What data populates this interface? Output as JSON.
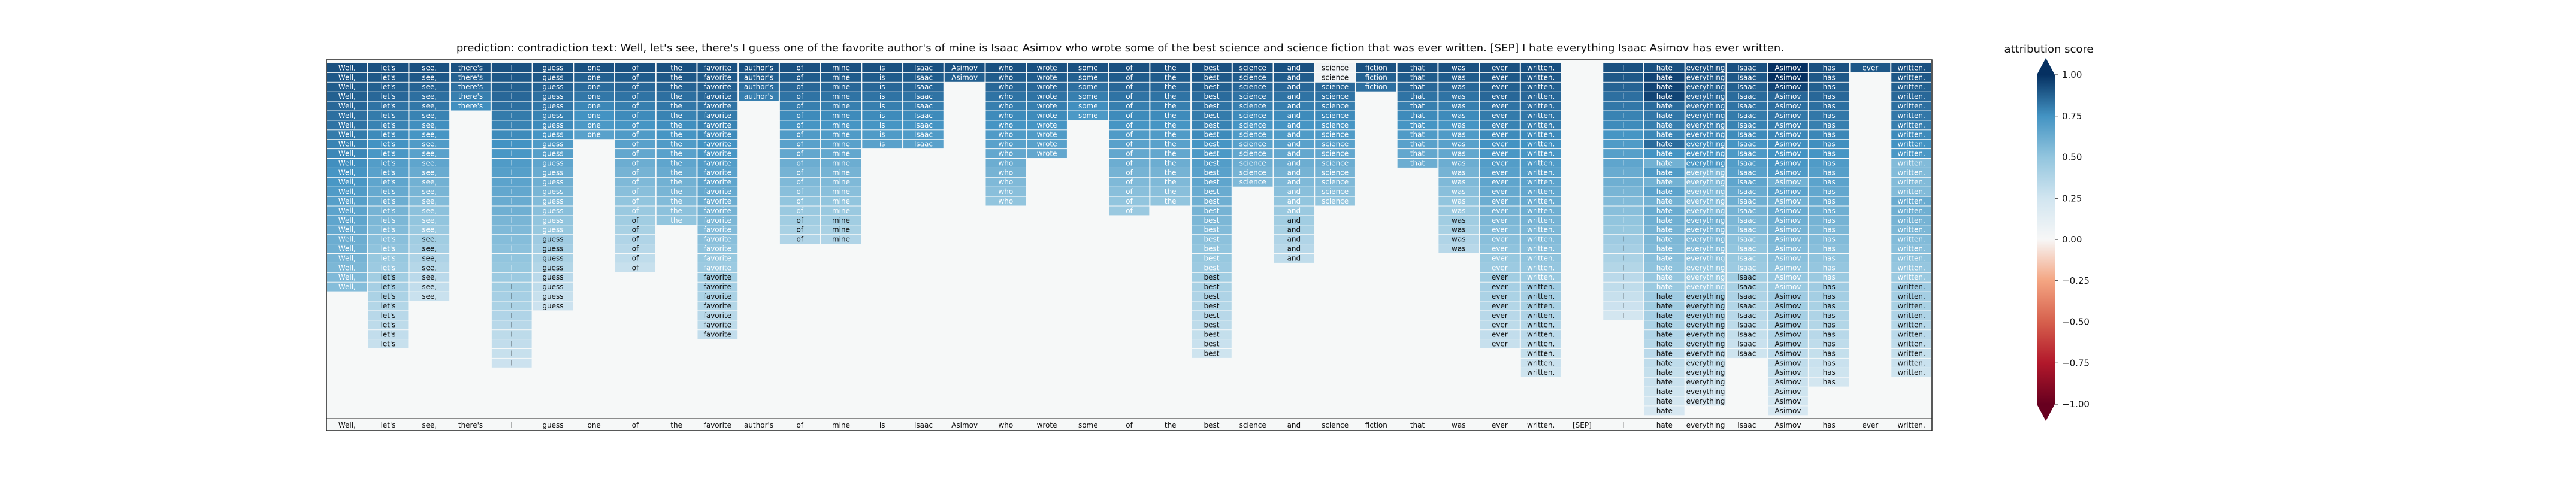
{
  "title": "prediction:  contradiction      text:  Well, let's see, there's I guess one of the favorite author's of mine is Isaac Asimov who wrote some of the best science and science fiction that was ever written. [SEP] I hate everything Isaac Asimov has ever written.",
  "colorbar": {
    "label": "attribution score",
    "ticks": [
      "1.00",
      "0.75",
      "0.50",
      "0.25",
      "0.00",
      "−0.25",
      "−0.50",
      "−0.75",
      "−1.00"
    ]
  },
  "chart_data": {
    "type": "heatmap",
    "title": "prediction:  contradiction      text:  Well, let's see, there's I guess one of the favorite author's of mine is Isaac Asimov who wrote some of the best science and science fiction that was ever written. [SEP] I hate everything Isaac Asimov has ever written.",
    "prediction": "contradiction",
    "colorbar_label": "attribution score",
    "colorbar_range": [
      -1.0,
      1.0
    ],
    "colormap": "RdBu",
    "xlabels": [
      "Well,",
      "let's",
      "see,",
      "there's",
      "I",
      "guess",
      "one",
      "of",
      "the",
      "favorite",
      "author's",
      "of",
      "mine",
      "is",
      "Isaac",
      "Asimov",
      "who",
      "wrote",
      "some",
      "of",
      "the",
      "best",
      "science",
      "and",
      "science",
      "fiction",
      "that",
      "was",
      "ever",
      "written.",
      "[SEP]",
      "I",
      "hate",
      "everything",
      "Isaac",
      "Asimov",
      "has",
      "ever",
      "written."
    ],
    "column_cell_counts": [
      24,
      30,
      25,
      5,
      32,
      26,
      8,
      22,
      17,
      29,
      4,
      19,
      19,
      9,
      9,
      2,
      15,
      10,
      6,
      16,
      15,
      31,
      13,
      21,
      15,
      3,
      11,
      20,
      30,
      33,
      0,
      27,
      37,
      36,
      31,
      37,
      34,
      1,
      33
    ],
    "cell_values": [
      [
        0.92,
        0.9,
        0.89,
        0.88,
        0.86,
        0.84,
        0.83,
        0.81,
        0.79,
        0.78,
        0.76,
        0.74,
        0.73,
        0.71,
        0.69,
        0.67,
        0.66,
        0.64,
        0.62,
        0.61,
        0.59,
        0.57,
        0.56,
        0.54
      ],
      [
        0.92,
        0.9,
        0.88,
        0.86,
        0.83,
        0.81,
        0.79,
        0.77,
        0.75,
        0.73,
        0.7,
        0.68,
        0.66,
        0.64,
        0.62,
        0.59,
        0.57,
        0.55,
        0.53,
        0.51,
        0.48,
        0.46,
        0.44,
        0.42,
        0.4,
        0.37,
        0.35,
        0.33,
        0.31,
        0.29
      ],
      [
        0.92,
        0.9,
        0.87,
        0.84,
        0.82,
        0.79,
        0.76,
        0.74,
        0.71,
        0.68,
        0.66,
        0.63,
        0.6,
        0.58,
        0.55,
        0.52,
        0.5,
        0.47,
        0.44,
        0.42,
        0.39,
        0.36,
        0.34,
        0.31,
        0.28
      ],
      [
        0.92,
        0.88,
        0.84,
        0.8,
        0.76
      ],
      [
        0.92,
        0.9,
        0.88,
        0.86,
        0.84,
        0.81,
        0.79,
        0.77,
        0.75,
        0.73,
        0.71,
        0.69,
        0.67,
        0.65,
        0.63,
        0.61,
        0.58,
        0.56,
        0.54,
        0.52,
        0.5,
        0.48,
        0.46,
        0.44,
        0.42,
        0.4,
        0.38,
        0.35,
        0.33,
        0.31,
        0.29,
        0.27
      ],
      [
        0.92,
        0.9,
        0.87,
        0.84,
        0.82,
        0.79,
        0.77,
        0.74,
        0.71,
        0.69,
        0.66,
        0.63,
        0.61,
        0.58,
        0.55,
        0.53,
        0.5,
        0.48,
        0.45,
        0.42,
        0.4,
        0.37,
        0.34,
        0.32,
        0.29,
        0.27
      ],
      [
        0.92,
        0.88,
        0.85,
        0.82,
        0.78,
        0.75,
        0.72,
        0.68
      ],
      [
        0.92,
        0.89,
        0.86,
        0.83,
        0.8,
        0.77,
        0.74,
        0.71,
        0.68,
        0.65,
        0.62,
        0.59,
        0.56,
        0.53,
        0.5,
        0.47,
        0.44,
        0.41,
        0.38,
        0.35,
        0.32,
        0.29
      ],
      [
        0.92,
        0.9,
        0.87,
        0.84,
        0.82,
        0.79,
        0.76,
        0.74,
        0.71,
        0.68,
        0.66,
        0.63,
        0.6,
        0.58,
        0.55,
        0.52,
        0.5
      ],
      [
        0.92,
        0.9,
        0.88,
        0.86,
        0.83,
        0.81,
        0.79,
        0.77,
        0.75,
        0.73,
        0.7,
        0.68,
        0.66,
        0.64,
        0.62,
        0.59,
        0.57,
        0.55,
        0.53,
        0.51,
        0.48,
        0.46,
        0.44,
        0.42,
        0.4,
        0.37,
        0.35,
        0.33,
        0.31
      ],
      [
        0.92,
        0.88,
        0.84,
        0.8
      ],
      [
        0.92,
        0.89,
        0.86,
        0.83,
        0.8,
        0.77,
        0.74,
        0.71,
        0.68,
        0.65,
        0.62,
        0.59,
        0.56,
        0.53,
        0.5,
        0.47,
        0.44,
        0.41,
        0.38
      ],
      [
        0.92,
        0.89,
        0.86,
        0.83,
        0.8,
        0.77,
        0.74,
        0.71,
        0.68,
        0.65,
        0.62,
        0.59,
        0.56,
        0.53,
        0.5,
        0.47,
        0.44,
        0.41,
        0.38
      ],
      [
        0.92,
        0.89,
        0.86,
        0.83,
        0.8,
        0.77,
        0.74,
        0.71,
        0.68
      ],
      [
        0.92,
        0.89,
        0.86,
        0.83,
        0.8,
        0.77,
        0.74,
        0.71,
        0.68
      ],
      [
        0.92,
        0.88
      ],
      [
        0.92,
        0.89,
        0.86,
        0.83,
        0.8,
        0.77,
        0.74,
        0.71,
        0.68,
        0.65,
        0.62,
        0.59,
        0.56,
        0.53,
        0.5
      ],
      [
        0.92,
        0.89,
        0.86,
        0.83,
        0.8,
        0.77,
        0.74,
        0.71,
        0.68,
        0.65
      ],
      [
        0.92,
        0.88,
        0.84,
        0.8,
        0.76,
        0.72
      ],
      [
        0.92,
        0.89,
        0.86,
        0.83,
        0.8,
        0.77,
        0.74,
        0.71,
        0.68,
        0.65,
        0.62,
        0.59,
        0.56,
        0.53,
        0.5,
        0.47
      ],
      [
        0.92,
        0.89,
        0.86,
        0.83,
        0.8,
        0.77,
        0.74,
        0.71,
        0.68,
        0.65,
        0.62,
        0.59,
        0.56,
        0.53,
        0.5
      ],
      [
        0.92,
        0.9,
        0.88,
        0.85,
        0.83,
        0.81,
        0.79,
        0.77,
        0.74,
        0.72,
        0.7,
        0.68,
        0.66,
        0.63,
        0.61,
        0.59,
        0.57,
        0.55,
        0.52,
        0.5,
        0.48,
        0.46,
        0.44,
        0.41,
        0.39,
        0.37,
        0.35,
        0.33,
        0.3,
        0.28,
        0.26
      ],
      [
        0.92,
        0.89,
        0.86,
        0.83,
        0.8,
        0.77,
        0.74,
        0.71,
        0.68,
        0.65,
        0.62,
        0.59,
        0.56
      ],
      [
        0.92,
        0.89,
        0.86,
        0.83,
        0.8,
        0.77,
        0.74,
        0.71,
        0.68,
        0.65,
        0.62,
        0.59,
        0.56,
        0.53,
        0.5,
        0.47,
        0.44,
        0.41,
        0.38,
        0.35,
        0.32
      ],
      [
        0.92,
        0.89,
        0.86,
        0.83,
        0.8,
        0.77,
        0.74,
        0.71,
        0.68,
        0.65,
        0.62,
        0.59,
        0.56,
        0.53,
        0.5
      ],
      [
        0.92,
        0.88,
        0.84
      ],
      [
        0.92,
        0.89,
        0.86,
        0.83,
        0.8,
        0.77,
        0.74,
        0.71,
        0.68,
        0.65,
        0.62
      ],
      [
        0.92,
        0.89,
        0.86,
        0.83,
        0.8,
        0.77,
        0.74,
        0.71,
        0.68,
        0.65,
        0.62,
        0.59,
        0.56,
        0.53,
        0.5,
        0.47,
        0.44,
        0.41,
        0.38,
        0.35
      ],
      [
        0.92,
        0.9,
        0.88,
        0.86,
        0.83,
        0.81,
        0.79,
        0.77,
        0.75,
        0.73,
        0.7,
        0.68,
        0.66,
        0.64,
        0.62,
        0.59,
        0.57,
        0.55,
        0.53,
        0.51,
        0.48,
        0.46,
        0.44,
        0.42,
        0.4,
        0.37,
        0.35,
        0.33,
        0.31,
        0.29
      ],
      [
        0.92,
        0.9,
        0.88,
        0.86,
        0.84,
        0.82,
        0.8,
        0.77,
        0.75,
        0.73,
        0.71,
        0.69,
        0.67,
        0.65,
        0.63,
        0.61,
        0.59,
        0.57,
        0.55,
        0.53,
        0.51,
        0.49,
        0.47,
        0.45,
        0.43,
        0.41,
        0.39,
        0.36,
        0.34,
        0.32,
        0.3,
        0.28,
        0.26
      ],
      [],
      [
        0.92,
        0.9,
        0.87,
        0.84,
        0.82,
        0.79,
        0.77,
        0.74,
        0.71,
        0.69,
        0.66,
        0.63,
        0.61,
        0.58,
        0.55,
        0.53,
        0.5,
        0.48,
        0.45,
        0.42,
        0.4,
        0.37,
        0.34,
        0.32,
        0.29,
        0.27,
        0.24
      ],
      [
        0.92,
        0.9,
        0.88,
        0.86,
        0.84,
        0.82,
        0.8,
        0.78,
        0.76,
        0.75,
        0.73,
        0.71,
        0.69,
        0.67,
        0.65,
        0.63,
        0.61,
        0.59,
        0.57,
        0.55,
        0.53,
        0.51,
        0.49,
        0.47,
        0.45,
        0.44,
        0.42,
        0.4,
        0.38,
        0.36,
        0.34,
        0.32,
        0.3,
        0.28,
        0.26,
        0.24,
        0.22
      ],
      [
        0.92,
        0.9,
        0.88,
        0.86,
        0.84,
        0.82,
        0.8,
        0.78,
        0.76,
        0.74,
        0.72,
        0.7,
        0.68,
        0.66,
        0.64,
        0.62,
        0.6,
        0.58,
        0.56,
        0.54,
        0.52,
        0.5,
        0.48,
        0.46,
        0.44,
        0.42,
        0.4,
        0.38,
        0.36,
        0.34,
        0.32,
        0.3,
        0.28,
        0.26,
        0.24,
        0.22
      ],
      [
        0.92,
        0.9,
        0.88,
        0.85,
        0.83,
        0.81,
        0.79,
        0.77,
        0.74,
        0.72,
        0.7,
        0.68,
        0.66,
        0.63,
        0.61,
        0.59,
        0.57,
        0.55,
        0.52,
        0.5,
        0.48,
        0.46,
        0.44,
        0.41,
        0.39,
        0.37,
        0.35,
        0.33,
        0.3,
        0.28,
        0.26
      ],
      [
        0.92,
        0.9,
        0.88,
        0.86,
        0.84,
        0.82,
        0.8,
        0.78,
        0.76,
        0.75,
        0.73,
        0.71,
        0.69,
        0.67,
        0.65,
        0.63,
        0.61,
        0.59,
        0.57,
        0.55,
        0.53,
        0.51,
        0.49,
        0.47,
        0.45,
        0.44,
        0.42,
        0.4,
        0.38,
        0.36,
        0.34,
        0.32,
        0.3,
        0.28,
        0.26,
        0.24,
        0.22
      ],
      [
        0.92,
        0.9,
        0.88,
        0.86,
        0.84,
        0.82,
        0.8,
        0.78,
        0.76,
        0.74,
        0.71,
        0.69,
        0.67,
        0.65,
        0.63,
        0.61,
        0.59,
        0.57,
        0.55,
        0.53,
        0.51,
        0.49,
        0.47,
        0.45,
        0.43,
        0.41,
        0.39,
        0.37,
        0.35,
        0.32,
        0.3,
        0.28,
        0.26,
        0.24
      ],
      [
        0.92
      ],
      [
        0.92,
        0.9,
        0.88,
        0.86,
        0.84,
        0.82,
        0.8,
        0.77,
        0.75,
        0.73,
        0.71,
        0.69,
        0.67,
        0.65,
        0.63,
        0.61,
        0.59,
        0.57,
        0.55,
        0.53,
        0.51,
        0.49,
        0.47,
        0.45,
        0.43,
        0.41,
        0.39,
        0.36,
        0.34,
        0.32,
        0.3,
        0.28,
        0.26
      ]
    ],
    "overrides": {
      "24:0": 0.05,
      "24:1": 0.05,
      "32:1": 0.95,
      "32:2": 0.95,
      "32:3": 0.95,
      "32:4": 0.85,
      "32:8": 0.85,
      "32:10": 0.6,
      "32:12": 0.6,
      "32:14": 0.6,
      "33:11": 0.55,
      "33:12": 0.55,
      "33:13": 0.55,
      "33:14": 0.55,
      "33:15": 0.55,
      "35:0": 1.0,
      "35:1": 1.0,
      "35:2": 0.95,
      "35:12": 0.6,
      "35:14": 0.6,
      "38:10": 0.55,
      "38:11": 0.55,
      "38:12": 0.55,
      "38:13": 0.55,
      "37:0": 0.9
    }
  },
  "colors": {
    "background": "#ffffff",
    "empty_cell": "#f6f8f8",
    "frame": "#222222"
  }
}
